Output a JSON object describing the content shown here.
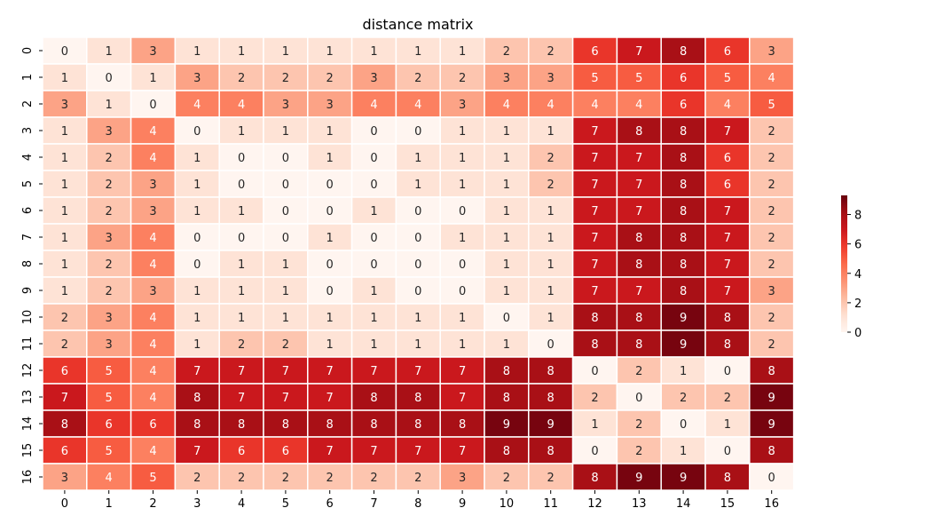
{
  "chart_data": {
    "type": "heatmap",
    "title": "distance matrix",
    "xlabel": "",
    "ylabel": "",
    "x_categories": [
      "0",
      "1",
      "2",
      "3",
      "4",
      "5",
      "6",
      "7",
      "8",
      "9",
      "10",
      "11",
      "12",
      "13",
      "14",
      "15",
      "16"
    ],
    "y_categories": [
      "0",
      "1",
      "2",
      "3",
      "4",
      "5",
      "6",
      "7",
      "8",
      "9",
      "10",
      "11",
      "12",
      "13",
      "14",
      "15",
      "16"
    ],
    "values": [
      [
        0,
        1,
        3,
        1,
        1,
        1,
        1,
        1,
        1,
        1,
        2,
        2,
        6,
        7,
        8,
        6,
        3
      ],
      [
        1,
        0,
        1,
        3,
        2,
        2,
        2,
        3,
        2,
        2,
        3,
        3,
        5,
        5,
        6,
        5,
        4
      ],
      [
        3,
        1,
        0,
        4,
        4,
        3,
        3,
        4,
        4,
        3,
        4,
        4,
        4,
        4,
        6,
        4,
        5
      ],
      [
        1,
        3,
        4,
        0,
        1,
        1,
        1,
        0,
        0,
        1,
        1,
        1,
        7,
        8,
        8,
        7,
        2
      ],
      [
        1,
        2,
        4,
        1,
        0,
        0,
        1,
        0,
        1,
        1,
        1,
        2,
        7,
        7,
        8,
        6,
        2
      ],
      [
        1,
        2,
        3,
        1,
        0,
        0,
        0,
        0,
        1,
        1,
        1,
        2,
        7,
        7,
        8,
        6,
        2
      ],
      [
        1,
        2,
        3,
        1,
        1,
        0,
        0,
        1,
        0,
        0,
        1,
        1,
        7,
        7,
        8,
        7,
        2
      ],
      [
        1,
        3,
        4,
        0,
        0,
        0,
        1,
        0,
        0,
        1,
        1,
        1,
        7,
        8,
        8,
        7,
        2
      ],
      [
        1,
        2,
        4,
        0,
        1,
        1,
        0,
        0,
        0,
        0,
        1,
        1,
        7,
        8,
        8,
        7,
        2
      ],
      [
        1,
        2,
        3,
        1,
        1,
        1,
        0,
        1,
        0,
        0,
        1,
        1,
        7,
        7,
        8,
        7,
        3
      ],
      [
        2,
        3,
        4,
        1,
        1,
        1,
        1,
        1,
        1,
        1,
        0,
        1,
        8,
        8,
        9,
        8,
        2
      ],
      [
        2,
        3,
        4,
        1,
        2,
        2,
        1,
        1,
        1,
        1,
        1,
        0,
        8,
        8,
        9,
        8,
        2
      ],
      [
        6,
        5,
        4,
        7,
        7,
        7,
        7,
        7,
        7,
        7,
        8,
        8,
        0,
        2,
        1,
        0,
        8
      ],
      [
        7,
        5,
        4,
        8,
        7,
        7,
        7,
        8,
        8,
        7,
        8,
        8,
        2,
        0,
        2,
        2,
        9
      ],
      [
        8,
        6,
        6,
        8,
        8,
        8,
        8,
        8,
        8,
        8,
        9,
        9,
        1,
        2,
        0,
        1,
        9
      ],
      [
        6,
        5,
        4,
        7,
        6,
        6,
        7,
        7,
        7,
        7,
        8,
        8,
        0,
        2,
        1,
        0,
        8
      ],
      [
        3,
        4,
        5,
        2,
        2,
        2,
        2,
        2,
        2,
        3,
        2,
        2,
        8,
        9,
        9,
        8,
        0
      ]
    ],
    "colormap": "Reds",
    "vmin": 0,
    "vmax": 9.3,
    "annotations": true,
    "colorbar": {
      "ticks": [
        0,
        2,
        4,
        6,
        8
      ],
      "tick_labels": [
        "0",
        "2",
        "4",
        "6",
        "8"
      ],
      "placement": "right"
    },
    "grid": false
  }
}
